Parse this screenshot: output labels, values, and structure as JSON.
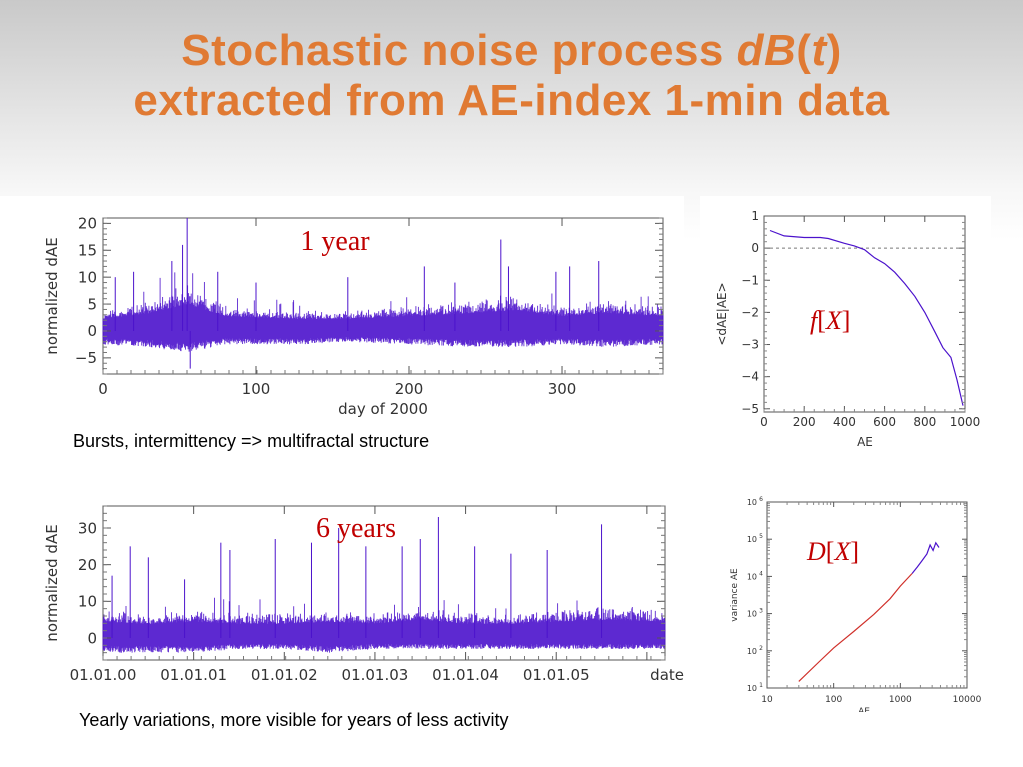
{
  "slide": {
    "title_line1_prefix": "Stochastic noise process ",
    "title_italic_1": "dB",
    "title_paren_open": "(",
    "title_italic_2": "t",
    "title_paren_close": ")",
    "title_line2": "extracted from AE-index 1-min data",
    "caption_top": "Bursts, intermittency => multifractal structure",
    "caption_bottom": "Yearly variations, more visible for years of less activity"
  },
  "colors": {
    "title": "#e07a33",
    "signal": "#4b12cc",
    "fit": "#d0302a",
    "annotation": "#c00000"
  },
  "chart_data": [
    {
      "id": "one-year",
      "type": "line",
      "annotation": "1 year",
      "xlabel": "day of 2000",
      "ylabel": "normalized dAE",
      "xlim": [
        0,
        366
      ],
      "ylim": [
        -8,
        21
      ],
      "x_ticks": [
        0,
        100,
        200,
        300
      ],
      "x_tick_labels": [
        "0",
        "100",
        "200",
        "300"
      ],
      "y_ticks": [
        20,
        15,
        10,
        5,
        0,
        -5
      ],
      "y_tick_labels": [
        "20",
        "15",
        "10",
        "5",
        "0",
        "−5"
      ],
      "series": [
        {
          "band": [
            [
              0,
              -2.5,
              4
            ],
            [
              30,
              -3,
              6
            ],
            [
              55,
              -4,
              9
            ],
            [
              80,
              -2.5,
              5
            ],
            [
              130,
              -2.5,
              4
            ],
            [
              160,
              -2,
              4
            ],
            [
              200,
              -2.5,
              5
            ],
            [
              240,
              -3,
              6
            ],
            [
              270,
              -3,
              7
            ],
            [
              300,
              -2.5,
              5
            ],
            [
              330,
              -3,
              6
            ],
            [
              366,
              -2.5,
              5
            ]
          ],
          "spikes": [
            [
              8,
              10
            ],
            [
              20,
              11
            ],
            [
              45,
              13
            ],
            [
              52,
              16
            ],
            [
              55,
              21
            ],
            [
              57,
              -7
            ],
            [
              75,
              11
            ],
            [
              100,
              9
            ],
            [
              160,
              10
            ],
            [
              210,
              12
            ],
            [
              230,
              9
            ],
            [
              260,
              17
            ],
            [
              265,
              12
            ],
            [
              296,
              11
            ],
            [
              305,
              12
            ],
            [
              324,
              13
            ]
          ]
        }
      ]
    },
    {
      "id": "six-years",
      "type": "line",
      "annotation": "6 years",
      "ylabel": "normalized dAE",
      "xlim": [
        0,
        6.2
      ],
      "ylim": [
        -6,
        36
      ],
      "x_ticks": [
        0,
        1,
        2,
        3,
        4,
        5,
        6
      ],
      "x_tick_labels": [
        "01.01.00",
        "01.01.01",
        "01.01.02",
        "01.01.03",
        "01.01.04",
        "01.01.05",
        "date"
      ],
      "y_ticks": [
        30,
        20,
        10,
        0
      ],
      "y_tick_labels": [
        "30",
        "20",
        "10",
        "0"
      ],
      "series": [
        {
          "band": [
            [
              0,
              -4,
              8
            ],
            [
              0.5,
              -4,
              7
            ],
            [
              1.0,
              -4,
              8
            ],
            [
              1.5,
              -3,
              7
            ],
            [
              2.0,
              -3,
              7
            ],
            [
              2.5,
              -4,
              8
            ],
            [
              3.0,
              -3,
              7
            ],
            [
              3.5,
              -3,
              9
            ],
            [
              4.0,
              -3,
              7
            ],
            [
              4.5,
              -3,
              7
            ],
            [
              5.0,
              -3,
              8
            ],
            [
              5.6,
              -3,
              9
            ],
            [
              6.2,
              -3,
              8
            ]
          ],
          "spikes": [
            [
              0.1,
              17
            ],
            [
              0.3,
              25
            ],
            [
              0.5,
              22
            ],
            [
              0.9,
              16
            ],
            [
              1.3,
              26
            ],
            [
              1.4,
              24
            ],
            [
              1.9,
              27
            ],
            [
              2.3,
              26
            ],
            [
              2.6,
              30
            ],
            [
              2.9,
              25
            ],
            [
              3.3,
              25
            ],
            [
              3.5,
              27
            ],
            [
              3.7,
              33
            ],
            [
              4.1,
              25
            ],
            [
              4.5,
              23
            ],
            [
              4.9,
              24
            ],
            [
              5.5,
              31
            ]
          ]
        }
      ]
    },
    {
      "id": "f-of-x",
      "type": "line",
      "annotation": "f[X]",
      "xlabel": "AE",
      "ylabel": "<dAE|AE>",
      "xlim": [
        0,
        1000
      ],
      "ylim": [
        -5.1,
        1
      ],
      "x_ticks": [
        0,
        200,
        400,
        600,
        800,
        1000
      ],
      "x_tick_labels": [
        "0",
        "200",
        "400",
        "600",
        "800",
        "1000"
      ],
      "y_ticks": [
        1,
        0,
        -1,
        -2,
        -3,
        -4,
        -5
      ],
      "y_tick_labels": [
        "1",
        "0",
        "−1",
        "−2",
        "−3",
        "−4",
        "−5"
      ],
      "series": [
        {
          "x": [
            30,
            100,
            200,
            280,
            320,
            400,
            450,
            500,
            550,
            600,
            650,
            700,
            750,
            800,
            850,
            890,
            930,
            960,
            990
          ],
          "y": [
            0.55,
            0.38,
            0.33,
            0.33,
            0.3,
            0.15,
            0.07,
            -0.05,
            -0.3,
            -0.48,
            -0.75,
            -1.1,
            -1.5,
            -2.0,
            -2.6,
            -3.1,
            -3.4,
            -4.1,
            -4.9
          ]
        }
      ],
      "reference_line_y": 0
    },
    {
      "id": "d-of-x",
      "type": "line",
      "annotation": "D[X]",
      "xlabel": "AE",
      "ylabel": "variance AE",
      "x_scale": "log",
      "y_scale": "log",
      "xlim": [
        10,
        10000
      ],
      "ylim": [
        10,
        1000000
      ],
      "x_ticks": [
        10,
        100,
        1000,
        10000
      ],
      "x_tick_labels": [
        "10",
        "100",
        "1000",
        "10000"
      ],
      "y_ticks": [
        10,
        100,
        1000,
        10000,
        100000,
        1000000
      ],
      "y_tick_labels": [
        "10",
        "10",
        "10",
        "10",
        "10",
        "10"
      ],
      "y_tick_exponents": [
        "1",
        "2",
        "3",
        "4",
        "5",
        "6"
      ],
      "series": [
        {
          "name": "",
          "x": [
            30,
            60,
            100,
            200,
            400,
            700,
            1000,
            1500
          ],
          "y": [
            15,
            50,
            120,
            330,
            950,
            2500,
            5500,
            12000
          ]
        },
        {
          "name": "",
          "x": [
            1500,
            1800,
            2100,
            2500,
            2800,
            3100,
            3400,
            3800
          ],
          "y": [
            12000,
            18000,
            26000,
            40000,
            70000,
            50000,
            80000,
            60000
          ]
        }
      ]
    }
  ]
}
